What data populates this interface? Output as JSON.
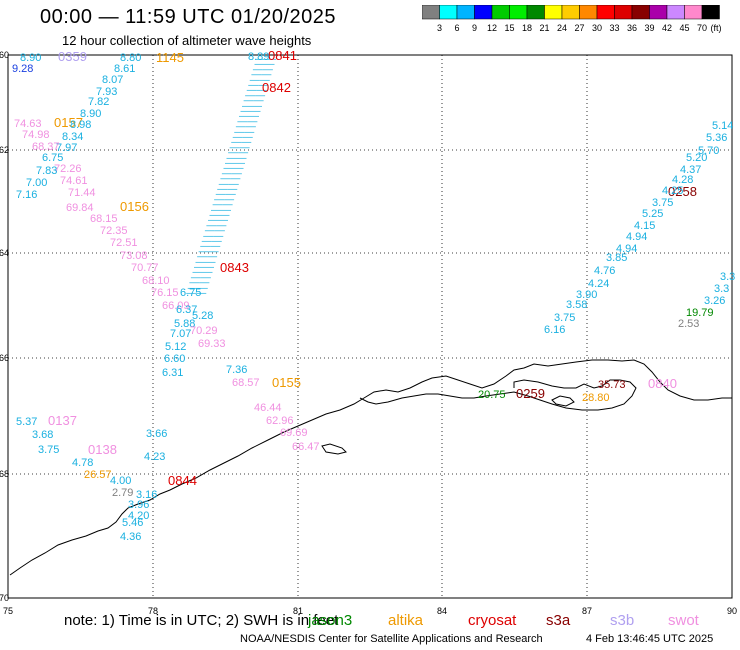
{
  "title": "00:00 — 11:59 UTC 01/20/2025",
  "subtitle": "12 hour collection of altimeter wave heights",
  "colorbar": {
    "colors": [
      "#808080",
      "#00ffff",
      "#00b4ff",
      "#0000ff",
      "#00cc00",
      "#00ee00",
      "#008800",
      "#ffff00",
      "#ffcc00",
      "#ff8800",
      "#ff0000",
      "#dd0000",
      "#880000",
      "#aa00aa",
      "#cc88ff",
      "#ff88cc",
      "#000000"
    ],
    "labels": [
      "3",
      "6",
      "9",
      "12",
      "15",
      "18",
      "21",
      "24",
      "27",
      "30",
      "33",
      "36",
      "39",
      "42",
      "45",
      "70"
    ],
    "unit": "(ft)"
  },
  "axes": {
    "x_ticks": [
      "75",
      "78",
      "81",
      "84",
      "87",
      "90"
    ],
    "y_ticks": [
      "60",
      "62",
      "64",
      "66",
      "68",
      "70"
    ]
  },
  "passes": [
    {
      "text": "0359",
      "color": "#b0a0f0"
    },
    {
      "text": "1145",
      "color": "#ee9900"
    },
    {
      "text": "0841",
      "color": "#dd0000"
    },
    {
      "text": "0842",
      "color": "#dd0000"
    },
    {
      "text": "0157",
      "color": "#ee9900"
    },
    {
      "text": "0156",
      "color": "#ee9900"
    },
    {
      "text": "0843",
      "color": "#dd0000"
    },
    {
      "text": "0258",
      "color": "#880000"
    },
    {
      "text": "0155",
      "color": "#ee9900"
    },
    {
      "text": "0137",
      "color": "#f090e0"
    },
    {
      "text": "0138",
      "color": "#f090e0"
    },
    {
      "text": "0844",
      "color": "#dd0000"
    },
    {
      "text": "0259",
      "color": "#880000"
    },
    {
      "text": "0840",
      "color": "#f090e0"
    }
  ],
  "values": [
    {
      "text": "8.90",
      "color": "#1ab0e0"
    },
    {
      "text": "9.28",
      "color": "#1a40e0"
    },
    {
      "text": "8.80",
      "color": "#1ab0e0"
    },
    {
      "text": "8.61",
      "color": "#1ab0e0"
    },
    {
      "text": "8.07",
      "color": "#1ab0e0"
    },
    {
      "text": "7.93",
      "color": "#1ab0e0"
    },
    {
      "text": "7.82",
      "color": "#1ab0e0"
    },
    {
      "text": "8.90",
      "color": "#1ab0e0"
    },
    {
      "text": "8.98",
      "color": "#1ab0e0"
    },
    {
      "text": "8.34",
      "color": "#1ab0e0"
    },
    {
      "text": "7.97",
      "color": "#1ab0e0"
    },
    {
      "text": "74.63",
      "color": "#f090e0"
    },
    {
      "text": "74.98",
      "color": "#f090e0"
    },
    {
      "text": "68.37",
      "color": "#f090e0"
    },
    {
      "text": "6.75",
      "color": "#1ab0e0"
    },
    {
      "text": "72.26",
      "color": "#f090e0"
    },
    {
      "text": "7.83",
      "color": "#1ab0e0"
    },
    {
      "text": "74.61",
      "color": "#f090e0"
    },
    {
      "text": "7.00",
      "color": "#1ab0e0"
    },
    {
      "text": "7.16",
      "color": "#1ab0e0"
    },
    {
      "text": "71.44",
      "color": "#f090e0"
    },
    {
      "text": "69.84",
      "color": "#f090e0"
    },
    {
      "text": "68.15",
      "color": "#f090e0"
    },
    {
      "text": "72.35",
      "color": "#f090e0"
    },
    {
      "text": "72.51",
      "color": "#f090e0"
    },
    {
      "text": "73.08",
      "color": "#f090e0"
    },
    {
      "text": "70.77",
      "color": "#f090e0"
    },
    {
      "text": "68.10",
      "color": "#f090e0"
    },
    {
      "text": "76.15",
      "color": "#f090e0"
    },
    {
      "text": "66.09",
      "color": "#f090e0"
    },
    {
      "text": "5.88",
      "color": "#1ab0e0"
    },
    {
      "text": "6.75",
      "color": "#1ab0e0"
    },
    {
      "text": "6.37",
      "color": "#1ab0e0"
    },
    {
      "text": "5.28",
      "color": "#1ab0e0"
    },
    {
      "text": "7.07",
      "color": "#1ab0e0"
    },
    {
      "text": "70.29",
      "color": "#f090e0"
    },
    {
      "text": "69.33",
      "color": "#f090e0"
    },
    {
      "text": "5.12",
      "color": "#1ab0e0"
    },
    {
      "text": "6.60",
      "color": "#1ab0e0"
    },
    {
      "text": "6.31",
      "color": "#1ab0e0"
    },
    {
      "text": "7.36",
      "color": "#1ab0e0"
    },
    {
      "text": "68.57",
      "color": "#f090e0"
    },
    {
      "text": "46.44",
      "color": "#f090e0"
    },
    {
      "text": "62.96",
      "color": "#f090e0"
    },
    {
      "text": "69.69",
      "color": "#f090e0"
    },
    {
      "text": "66.47",
      "color": "#f090e0"
    },
    {
      "text": "5.37",
      "color": "#1ab0e0"
    },
    {
      "text": "3.68",
      "color": "#1ab0e0"
    },
    {
      "text": "3.66",
      "color": "#1ab0e0"
    },
    {
      "text": "3.75",
      "color": "#1ab0e0"
    },
    {
      "text": "4.78",
      "color": "#1ab0e0"
    },
    {
      "text": "4.23",
      "color": "#1ab0e0"
    },
    {
      "text": "26.57",
      "color": "#ee9900"
    },
    {
      "text": "4.00",
      "color": "#1ab0e0"
    },
    {
      "text": "2.79",
      "color": "#808080"
    },
    {
      "text": "3.16",
      "color": "#1ab0e0"
    },
    {
      "text": "3.96",
      "color": "#1ab0e0"
    },
    {
      "text": "4.20",
      "color": "#1ab0e0"
    },
    {
      "text": "5.46",
      "color": "#1ab0e0"
    },
    {
      "text": "4.36",
      "color": "#1ab0e0"
    },
    {
      "text": "8.89",
      "color": "#1ab0e0"
    },
    {
      "text": "5.14",
      "color": "#1ab0e0"
    },
    {
      "text": "5.36",
      "color": "#1ab0e0"
    },
    {
      "text": "5.70",
      "color": "#1ab0e0"
    },
    {
      "text": "5.20",
      "color": "#1ab0e0"
    },
    {
      "text": "4.37",
      "color": "#1ab0e0"
    },
    {
      "text": "4.28",
      "color": "#1ab0e0"
    },
    {
      "text": "4.25",
      "color": "#1ab0e0"
    },
    {
      "text": "3.75",
      "color": "#1ab0e0"
    },
    {
      "text": "5.25",
      "color": "#1ab0e0"
    },
    {
      "text": "4.15",
      "color": "#1ab0e0"
    },
    {
      "text": "4.94",
      "color": "#1ab0e0"
    },
    {
      "text": "4.94",
      "color": "#1ab0e0"
    },
    {
      "text": "3.85",
      "color": "#1ab0e0"
    },
    {
      "text": "4.76",
      "color": "#1ab0e0"
    },
    {
      "text": "4.24",
      "color": "#1ab0e0"
    },
    {
      "text": "3.90",
      "color": "#1ab0e0"
    },
    {
      "text": "3.58",
      "color": "#1ab0e0"
    },
    {
      "text": "3.75",
      "color": "#1ab0e0"
    },
    {
      "text": "6.16",
      "color": "#1ab0e0"
    },
    {
      "text": "19.79",
      "color": "#008800"
    },
    {
      "text": "2.53",
      "color": "#808080"
    },
    {
      "text": "3.26",
      "color": "#1ab0e0"
    },
    {
      "text": "3.3",
      "color": "#1ab0e0"
    },
    {
      "text": "3.3",
      "color": "#1ab0e0"
    },
    {
      "text": "20.75",
      "color": "#008800"
    },
    {
      "text": "35.73",
      "color": "#880000"
    },
    {
      "text": "28.80",
      "color": "#ee9900"
    }
  ],
  "note": "note: 1) Time is in UTC; 2) SWH is in feet",
  "legend_sats": [
    {
      "text": "jason3",
      "color": "#008800"
    },
    {
      "text": "altika",
      "color": "#ee9900"
    },
    {
      "text": "cryosat",
      "color": "#dd0000"
    },
    {
      "text": "s3a",
      "color": "#880000"
    },
    {
      "text": "s3b",
      "color": "#b0a0f0"
    },
    {
      "text": "swot",
      "color": "#f090e0"
    }
  ],
  "credit": "NOAA/NESDIS Center for Satellite Applications and Research",
  "rundate": "4 Feb 13:46:45 UTC 2025"
}
